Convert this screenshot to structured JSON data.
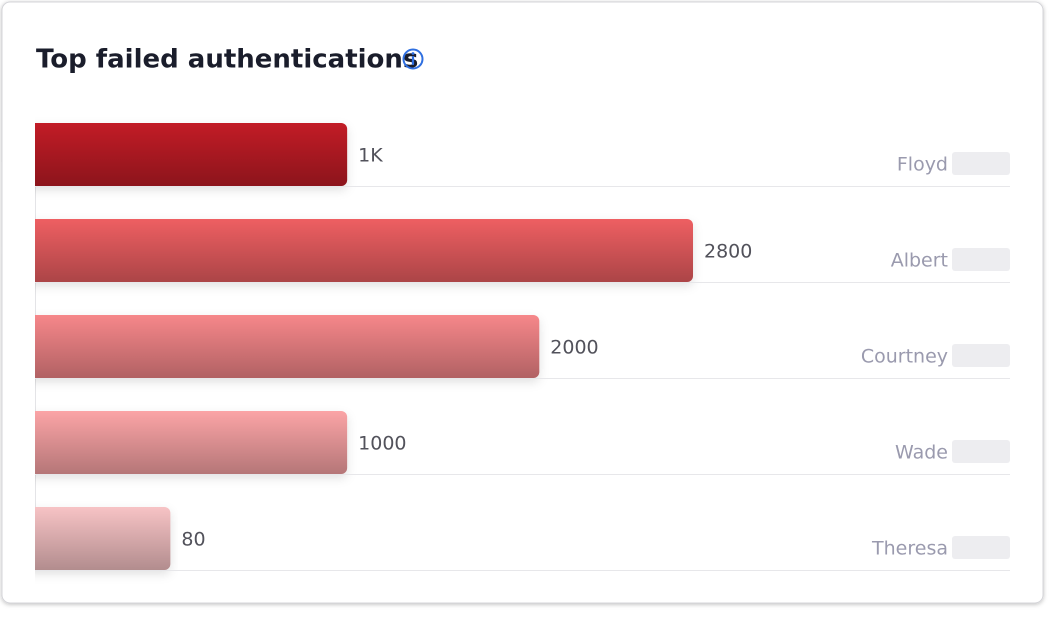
{
  "chart_data": {
    "type": "bar",
    "orientation": "horizontal",
    "title": "Top failed authentications",
    "categories": [
      "Floyd",
      "Albert",
      "Courtney",
      "Wade",
      "Theresa"
    ],
    "values": [
      1000,
      2800,
      2000,
      1000,
      80
    ],
    "value_labels": [
      "1K",
      "2800",
      "2000",
      "1000",
      "80"
    ],
    "colors": [
      "#c21f27",
      "#ee5f62",
      "#f6878a",
      "#fba4a6",
      "#f7c3c5"
    ]
  }
}
